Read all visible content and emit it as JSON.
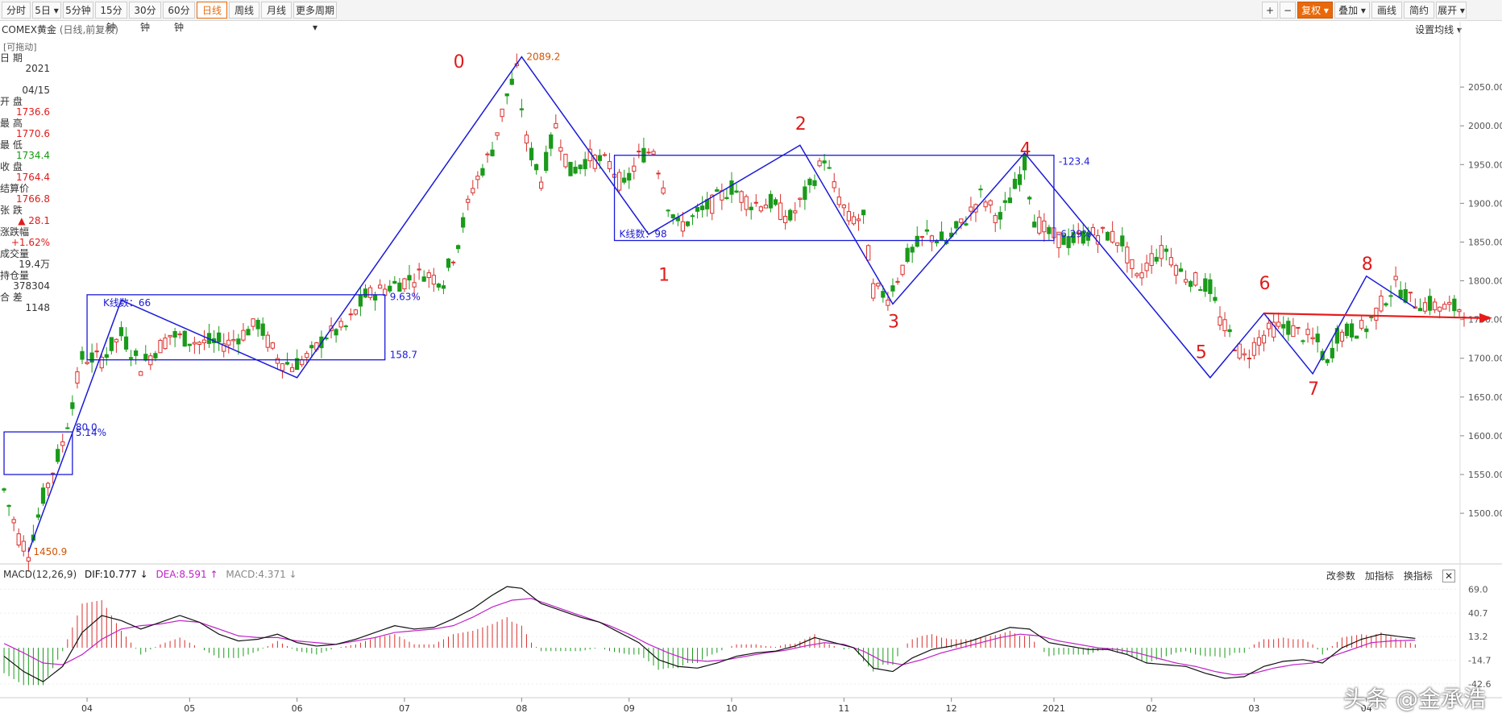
{
  "toolbar": {
    "left": [
      "分时",
      "5日 ▾",
      "5分钟",
      "15分钟",
      "30分钟",
      "60分钟",
      "日线",
      "周线",
      "月线",
      "更多周期 ▾"
    ],
    "active": "日线",
    "right": [
      "+",
      "−",
      "复权 ▾",
      "叠加 ▾",
      "画线",
      "简约",
      "展开 ▾"
    ]
  },
  "chart_title": "COMEX黄金",
  "chart_subtitle": "(日线,前复权)",
  "draggable": "[可拖动]",
  "set_ma": "设置均线 ▾",
  "info_panel": [
    {
      "label": "日 期",
      "value": "2021",
      "cls": "dark"
    },
    {
      "label": "",
      "value": "04/15",
      "cls": "dark"
    },
    {
      "label": "开 盘",
      "value": "1736.6",
      "cls": "red"
    },
    {
      "label": "最 高",
      "value": "1770.6",
      "cls": "red"
    },
    {
      "label": "最 低",
      "value": "1734.4",
      "cls": "green"
    },
    {
      "label": "收 盘",
      "value": "1764.4",
      "cls": "red"
    },
    {
      "label": "结算价",
      "value": "1766.8",
      "cls": "red"
    },
    {
      "label": "张 跌",
      "value": "▲ 28.1",
      "cls": "red"
    },
    {
      "label": "涨跌幅",
      "value": "+1.62%",
      "cls": "red"
    },
    {
      "label": "成交量",
      "value": "19.4万",
      "cls": "dark"
    },
    {
      "label": "持仓量",
      "value": "378304",
      "cls": "dark"
    },
    {
      "label": "合 差",
      "value": "1148",
      "cls": "dark"
    }
  ],
  "colors": {
    "up": "#d9302c",
    "down": "#1a9a1a",
    "drawing": "#1a1ad8",
    "arrow": "#e81b1b",
    "dif": "#111111",
    "dea": "#c021c8"
  },
  "chart_data": {
    "type": "candlestick",
    "price_axis": {
      "ticks": [
        2050,
        2000,
        1950,
        1900,
        1850,
        1800,
        1750,
        1700,
        1650,
        1600,
        1550,
        1500
      ],
      "labels": [
        "2050.00",
        "2000.00",
        "1950.00",
        "1900.00",
        "1850.00",
        "1800.00",
        "1750.00",
        "1700.00",
        "1650.00",
        "1600.00",
        "1550.00",
        "1500.00"
      ],
      "range": [
        1445,
        2100
      ]
    },
    "month_labels": [
      "04",
      "05",
      "06",
      "07",
      "08",
      "09",
      "10",
      "11",
      "12",
      "2021",
      "02",
      "03",
      "04"
    ],
    "month_index": [
      17,
      38,
      60,
      82,
      106,
      128,
      149,
      172,
      194,
      215,
      235,
      256,
      279
    ],
    "n_bars": 300,
    "closes": [
      [
        0,
        1530
      ],
      [
        3,
        1470
      ],
      [
        5,
        1450
      ],
      [
        8,
        1520
      ],
      [
        12,
        1590
      ],
      [
        16,
        1700
      ],
      [
        20,
        1700
      ],
      [
        24,
        1730
      ],
      [
        28,
        1690
      ],
      [
        34,
        1730
      ],
      [
        40,
        1720
      ],
      [
        46,
        1720
      ],
      [
        52,
        1745
      ],
      [
        56,
        1700
      ],
      [
        59,
        1690
      ],
      [
        63,
        1705
      ],
      [
        66,
        1730
      ],
      [
        70,
        1740
      ],
      [
        74,
        1780
      ],
      [
        78,
        1790
      ],
      [
        82,
        1800
      ],
      [
        86,
        1810
      ],
      [
        90,
        1800
      ],
      [
        93,
        1850
      ],
      [
        96,
        1920
      ],
      [
        100,
        1970
      ],
      [
        103,
        2040
      ],
      [
        105,
        2070
      ],
      [
        107,
        1980
      ],
      [
        110,
        1930
      ],
      [
        113,
        2000
      ],
      [
        116,
        1940
      ],
      [
        120,
        1960
      ],
      [
        124,
        1950
      ],
      [
        127,
        1920
      ],
      [
        130,
        1960
      ],
      [
        133,
        1970
      ],
      [
        136,
        1900
      ],
      [
        138,
        1870
      ],
      [
        141,
        1880
      ],
      [
        145,
        1900
      ],
      [
        149,
        1920
      ],
      [
        153,
        1900
      ],
      [
        157,
        1900
      ],
      [
        161,
        1880
      ],
      [
        165,
        1920
      ],
      [
        168,
        1960
      ],
      [
        170,
        1920
      ],
      [
        173,
        1880
      ],
      [
        176,
        1880
      ],
      [
        178,
        1790
      ],
      [
        181,
        1780
      ],
      [
        185,
        1830
      ],
      [
        189,
        1860
      ],
      [
        193,
        1850
      ],
      [
        197,
        1880
      ],
      [
        200,
        1910
      ],
      [
        204,
        1880
      ],
      [
        207,
        1920
      ],
      [
        209,
        1950
      ],
      [
        211,
        1880
      ],
      [
        214,
        1860
      ],
      [
        218,
        1850
      ],
      [
        222,
        1860
      ],
      [
        226,
        1860
      ],
      [
        229,
        1850
      ],
      [
        232,
        1800
      ],
      [
        235,
        1830
      ],
      [
        238,
        1840
      ],
      [
        241,
        1810
      ],
      [
        244,
        1800
      ],
      [
        247,
        1790
      ],
      [
        249,
        1750
      ],
      [
        252,
        1720
      ],
      [
        254,
        1700
      ],
      [
        257,
        1725
      ],
      [
        260,
        1740
      ],
      [
        263,
        1740
      ],
      [
        266,
        1730
      ],
      [
        269,
        1720
      ],
      [
        271,
        1690
      ],
      [
        273,
        1730
      ],
      [
        276,
        1735
      ],
      [
        279,
        1740
      ],
      [
        282,
        1770
      ],
      [
        285,
        1795
      ],
      [
        288,
        1775
      ],
      [
        291,
        1770
      ],
      [
        295,
        1765
      ],
      [
        299,
        1764
      ]
    ],
    "annotations": {
      "wave_labels": [
        {
          "text": "0",
          "bar": 93,
          "price": 2075
        },
        {
          "text": "1",
          "bar": 135,
          "price": 1800
        },
        {
          "text": "2",
          "bar": 163,
          "price": 1995
        },
        {
          "text": "3",
          "bar": 182,
          "price": 1740
        },
        {
          "text": "4",
          "bar": 209,
          "price": 1962
        },
        {
          "text": "5",
          "bar": 245,
          "price": 1700
        },
        {
          "text": "6",
          "bar": 258,
          "price": 1789
        },
        {
          "text": "7",
          "bar": 268,
          "price": 1653
        },
        {
          "text": "8",
          "bar": 279,
          "price": 1814
        }
      ],
      "price_marks": [
        {
          "text": "2089.2",
          "bar": 106,
          "price": 2089
        },
        {
          "text": "1450.9",
          "bar": 5,
          "price": 1450
        }
      ],
      "box_texts": [
        "5.14%",
        "80.0",
        "K线数：66",
        "9.63%",
        "158.7",
        "K线数：98",
        "-123.4",
        "-6.29%"
      ]
    }
  },
  "macd": {
    "title": "MACD(12,26,9)",
    "dif_label": "DIF:10.777 ↓",
    "dea_label": "DEA:8.591 ↑",
    "macd_label": "MACD:4.371 ↓",
    "buttons": [
      "改参数",
      "加指标",
      "换指标",
      "✕"
    ],
    "axis": {
      "ticks": [
        69.0,
        40.7,
        13.2,
        -14.7,
        -42.6
      ],
      "labels": [
        "69.0",
        "40.7",
        "13.2",
        "-14.7",
        "-42.6"
      ],
      "range": [
        -55,
        75
      ]
    },
    "dif": [
      [
        0,
        -10
      ],
      [
        4,
        -28
      ],
      [
        8,
        -40
      ],
      [
        12,
        -22
      ],
      [
        16,
        18
      ],
      [
        20,
        38
      ],
      [
        24,
        32
      ],
      [
        28,
        22
      ],
      [
        32,
        30
      ],
      [
        36,
        38
      ],
      [
        40,
        30
      ],
      [
        44,
        16
      ],
      [
        48,
        8
      ],
      [
        52,
        10
      ],
      [
        56,
        16
      ],
      [
        60,
        6
      ],
      [
        64,
        2
      ],
      [
        68,
        4
      ],
      [
        72,
        10
      ],
      [
        76,
        18
      ],
      [
        80,
        26
      ],
      [
        84,
        22
      ],
      [
        88,
        24
      ],
      [
        92,
        34
      ],
      [
        96,
        46
      ],
      [
        100,
        62
      ],
      [
        103,
        72
      ],
      [
        106,
        70
      ],
      [
        110,
        52
      ],
      [
        114,
        44
      ],
      [
        118,
        36
      ],
      [
        122,
        30
      ],
      [
        126,
        18
      ],
      [
        130,
        6
      ],
      [
        134,
        -14
      ],
      [
        138,
        -22
      ],
      [
        142,
        -24
      ],
      [
        146,
        -18
      ],
      [
        150,
        -10
      ],
      [
        154,
        -6
      ],
      [
        158,
        -4
      ],
      [
        162,
        2
      ],
      [
        166,
        12
      ],
      [
        170,
        6
      ],
      [
        174,
        0
      ],
      [
        178,
        -24
      ],
      [
        182,
        -28
      ],
      [
        186,
        -12
      ],
      [
        190,
        -2
      ],
      [
        194,
        2
      ],
      [
        198,
        8
      ],
      [
        202,
        16
      ],
      [
        206,
        24
      ],
      [
        210,
        22
      ],
      [
        214,
        6
      ],
      [
        218,
        2
      ],
      [
        222,
        -2
      ],
      [
        226,
        -2
      ],
      [
        230,
        -8
      ],
      [
        234,
        -18
      ],
      [
        238,
        -20
      ],
      [
        242,
        -22
      ],
      [
        246,
        -30
      ],
      [
        250,
        -36
      ],
      [
        254,
        -34
      ],
      [
        258,
        -22
      ],
      [
        262,
        -16
      ],
      [
        266,
        -14
      ],
      [
        270,
        -18
      ],
      [
        274,
        0
      ],
      [
        278,
        10
      ],
      [
        282,
        16
      ],
      [
        286,
        13
      ],
      [
        289,
        11
      ]
    ],
    "dea": [
      [
        0,
        5
      ],
      [
        4,
        -6
      ],
      [
        8,
        -18
      ],
      [
        12,
        -20
      ],
      [
        16,
        -8
      ],
      [
        20,
        10
      ],
      [
        24,
        22
      ],
      [
        28,
        26
      ],
      [
        32,
        28
      ],
      [
        36,
        32
      ],
      [
        40,
        30
      ],
      [
        44,
        22
      ],
      [
        48,
        14
      ],
      [
        52,
        12
      ],
      [
        56,
        12
      ],
      [
        60,
        8
      ],
      [
        64,
        6
      ],
      [
        68,
        4
      ],
      [
        72,
        8
      ],
      [
        76,
        12
      ],
      [
        80,
        18
      ],
      [
        84,
        20
      ],
      [
        88,
        22
      ],
      [
        92,
        26
      ],
      [
        96,
        36
      ],
      [
        100,
        48
      ],
      [
        104,
        56
      ],
      [
        108,
        58
      ],
      [
        112,
        50
      ],
      [
        116,
        42
      ],
      [
        120,
        34
      ],
      [
        124,
        26
      ],
      [
        128,
        16
      ],
      [
        132,
        4
      ],
      [
        136,
        -6
      ],
      [
        140,
        -14
      ],
      [
        144,
        -16
      ],
      [
        148,
        -14
      ],
      [
        152,
        -10
      ],
      [
        156,
        -6
      ],
      [
        160,
        -3
      ],
      [
        164,
        2
      ],
      [
        168,
        6
      ],
      [
        172,
        4
      ],
      [
        176,
        -4
      ],
      [
        180,
        -16
      ],
      [
        184,
        -20
      ],
      [
        188,
        -14
      ],
      [
        192,
        -6
      ],
      [
        196,
        0
      ],
      [
        200,
        6
      ],
      [
        204,
        12
      ],
      [
        208,
        16
      ],
      [
        212,
        14
      ],
      [
        216,
        8
      ],
      [
        220,
        4
      ],
      [
        224,
        0
      ],
      [
        228,
        -2
      ],
      [
        232,
        -6
      ],
      [
        236,
        -12
      ],
      [
        240,
        -18
      ],
      [
        244,
        -22
      ],
      [
        248,
        -28
      ],
      [
        252,
        -32
      ],
      [
        256,
        -30
      ],
      [
        260,
        -24
      ],
      [
        264,
        -20
      ],
      [
        268,
        -18
      ],
      [
        272,
        -10
      ],
      [
        276,
        -2
      ],
      [
        280,
        6
      ],
      [
        284,
        8
      ],
      [
        289,
        9
      ]
    ]
  },
  "watermark": "头条 @金承浩"
}
